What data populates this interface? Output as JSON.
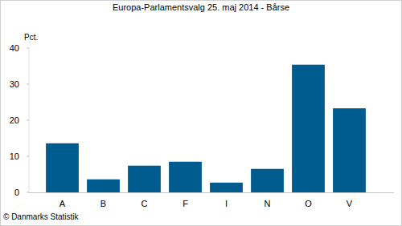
{
  "chart_data": {
    "type": "bar",
    "title": "Europa-Parlamentsvalg 25. maj 2014 - Bårse",
    "y_label": "Pct.",
    "annotations": [
      "© Danmarks Statistik"
    ],
    "categories": [
      "A",
      "B",
      "C",
      "F",
      "I",
      "N",
      "O",
      "V"
    ],
    "values": [
      13.6,
      3.6,
      7.4,
      8.5,
      2.7,
      6.5,
      35.4,
      23.3
    ],
    "color": "#005c8f",
    "ylim": [
      0,
      40
    ],
    "yticks": [
      0,
      10,
      20,
      30,
      40
    ],
    "grid": false
  }
}
